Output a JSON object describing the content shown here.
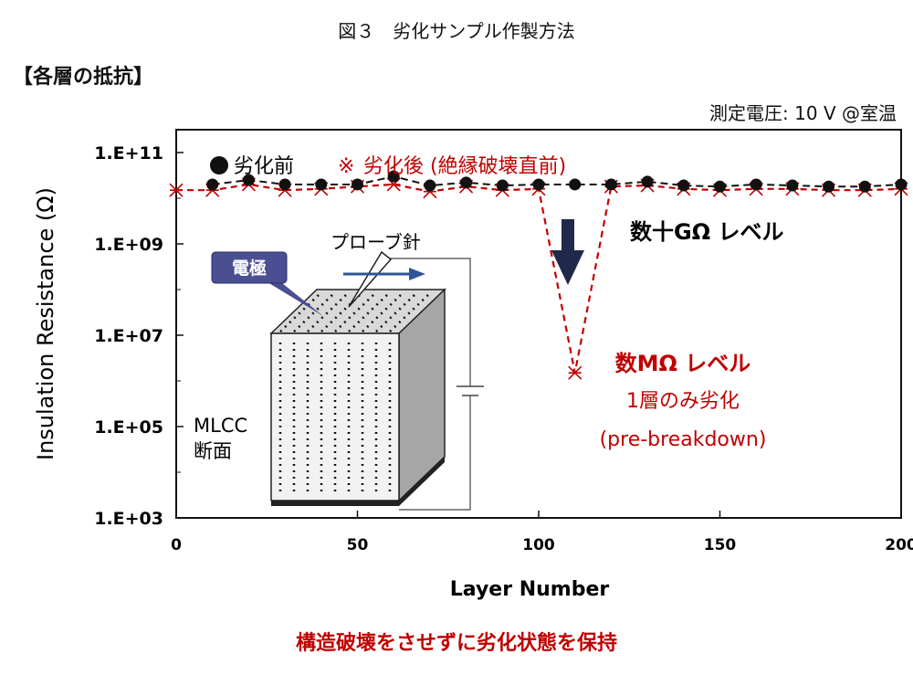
{
  "figure_title": "図３　劣化サンプル作製方法",
  "section_label": "【各層の抵抗】",
  "condition_text": "測定電圧: 10 V @室温",
  "bottom_note": "構造破壊をさせずに劣化状態を保持",
  "colors": {
    "before": "#111111",
    "after": "#c00000",
    "electrode": "#4a4f92",
    "arrow": "#2f5597"
  },
  "chart_data": {
    "type": "scatter",
    "title": "",
    "xlabel": "Layer Number",
    "ylabel": "Insulation Resistance (Ω)",
    "xlim": [
      0,
      200
    ],
    "x_ticks": [
      0,
      50,
      100,
      150,
      200
    ],
    "ylim_log10": [
      3,
      11.5
    ],
    "y_scale": "log",
    "y_ticks": [
      {
        "label": "1.E+03",
        "log10": 3
      },
      {
        "label": "1.E+05",
        "log10": 5
      },
      {
        "label": "1.E+07",
        "log10": 7
      },
      {
        "label": "1.E+09",
        "log10": 9
      },
      {
        "label": "1.E+11",
        "log10": 11
      }
    ],
    "grid": false,
    "legend": [
      {
        "name": "劣化前",
        "marker": "●"
      },
      {
        "name": "劣化後 (絶縁破壊直前)",
        "marker": "※"
      }
    ],
    "series": [
      {
        "name": "劣化前",
        "x": [
          10,
          20,
          30,
          40,
          50,
          60,
          70,
          80,
          90,
          100,
          110,
          120,
          130,
          140,
          150,
          160,
          170,
          180,
          190,
          200
        ],
        "y": [
          20000000000.0,
          25000000000.0,
          20000000000.0,
          20000000000.0,
          20000000000.0,
          30000000000.0,
          19000000000.0,
          22000000000.0,
          19000000000.0,
          20000000000.0,
          20000000000.0,
          20000000000.0,
          23000000000.0,
          19000000000.0,
          18000000000.0,
          20000000000.0,
          19000000000.0,
          18000000000.0,
          18000000000.0,
          20000000000.0
        ]
      },
      {
        "name": "劣化後 (絶縁破壊直前)",
        "x": [
          0,
          10,
          20,
          30,
          40,
          50,
          60,
          70,
          80,
          90,
          100,
          110,
          120,
          130,
          140,
          150,
          160,
          170,
          180,
          190,
          200
        ],
        "y": [
          15000000000.0,
          15000000000.0,
          20000000000.0,
          15000000000.0,
          16000000000.0,
          18000000000.0,
          20000000000.0,
          14000000000.0,
          18000000000.0,
          15000000000.0,
          16000000000.0,
          1500000.0,
          18000000000.0,
          19000000000.0,
          16000000000.0,
          15000000000.0,
          16000000000.0,
          16000000000.0,
          15000000000.0,
          15000000000.0,
          16000000000.0
        ]
      }
    ],
    "annotations": {
      "normal_level": "数十GΩ レベル",
      "low_level": "数MΩ レベル",
      "single_layer": "1層のみ劣化",
      "pre_breakdown": "(pre-breakdown)",
      "probe": "プローブ針",
      "electrode": "電極",
      "mlcc": "MLCC",
      "cross_section": "断面"
    }
  }
}
